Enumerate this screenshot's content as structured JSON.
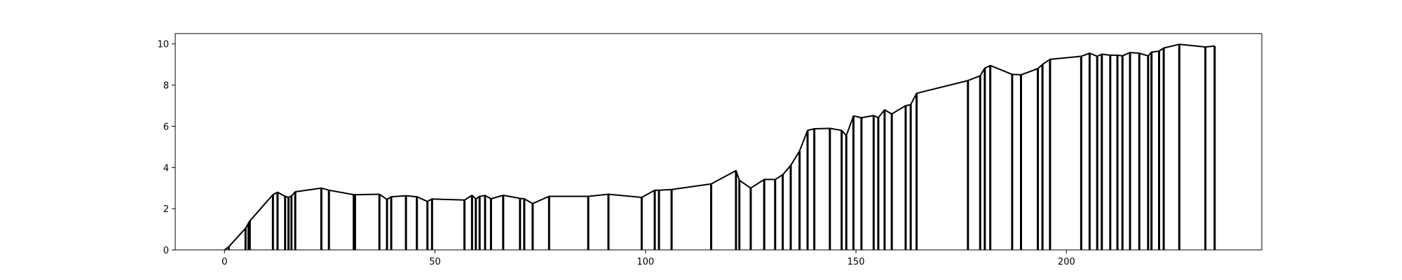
{
  "chart_data": {
    "type": "line",
    "title": "",
    "xlabel": "",
    "ylabel": "",
    "xlim": [
      -11.7,
      246.4
    ],
    "ylim": [
      0,
      10.5
    ],
    "grid": false,
    "x_ticks": [
      0,
      50,
      100,
      150,
      200
    ],
    "y_ticks": [
      0,
      2,
      4,
      6,
      8,
      10
    ],
    "x_tick_labels": [
      "0",
      "50",
      "100",
      "150",
      "200"
    ],
    "y_tick_labels": [
      "0",
      "2",
      "4",
      "6",
      "8",
      "10"
    ],
    "line_color": "#000000",
    "series": [
      {
        "x": [
          0,
          1,
          5,
          5.7,
          6,
          11.5,
          12.6,
          14.4,
          15.2,
          15.9,
          16.8,
          23,
          24.8,
          30.7,
          31,
          36.8,
          38.6,
          39.6,
          43.1,
          45.7,
          48.2,
          49.3,
          57,
          58.8,
          59.7,
          60.6,
          61.9,
          63.3,
          66.2,
          70.2,
          71.2,
          73.2,
          77.1,
          86.4,
          91.2,
          99.1,
          102.2,
          103.2,
          106.2,
          115.6,
          121.5,
          122.3,
          125,
          128.2,
          130.8,
          132.6,
          134.5,
          136.6,
          138.5,
          140.1,
          143.8,
          146.6,
          147.7,
          149.4,
          151.3,
          154.2,
          155.3,
          156.8,
          158.5,
          161.8,
          163,
          164.4,
          176.6,
          179.5,
          180.6,
          181.9,
          187.1,
          189.2,
          193.2,
          194.3,
          196.1,
          203.5,
          205.5,
          207.3,
          208.4,
          210.4,
          212.1,
          213.3,
          215.1,
          217.3,
          219.4,
          220.2,
          222,
          223.1,
          226.8,
          233,
          235.2
        ],
        "y": [
          0,
          0.15,
          1.05,
          1.3,
          1.4,
          2.68,
          2.8,
          2.6,
          2.55,
          2.62,
          2.82,
          3.0,
          2.9,
          2.68,
          2.68,
          2.7,
          2.45,
          2.58,
          2.63,
          2.58,
          2.35,
          2.47,
          2.42,
          2.65,
          2.47,
          2.6,
          2.64,
          2.48,
          2.65,
          2.5,
          2.48,
          2.25,
          2.6,
          2.6,
          2.7,
          2.55,
          2.9,
          2.9,
          2.93,
          3.2,
          3.85,
          3.38,
          3.0,
          3.42,
          3.42,
          3.65,
          4.1,
          4.8,
          5.8,
          5.88,
          5.9,
          5.8,
          5.55,
          6.5,
          6.42,
          6.52,
          6.42,
          6.8,
          6.6,
          7.0,
          7.05,
          7.6,
          8.22,
          8.45,
          8.82,
          8.95,
          8.52,
          8.5,
          8.8,
          9.0,
          9.25,
          9.4,
          9.55,
          9.4,
          9.5,
          9.45,
          9.45,
          9.42,
          9.58,
          9.55,
          9.42,
          9.6,
          9.65,
          9.8,
          9.98,
          9.85,
          9.9
        ]
      }
    ]
  }
}
